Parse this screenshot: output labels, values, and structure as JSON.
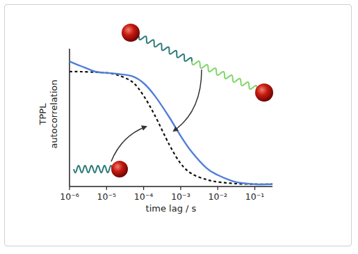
{
  "chart_data": {
    "type": "line",
    "x_label": "time lag / s",
    "y_label": "TPPL autocorrelation",
    "log": "x",
    "xlim": [
      1e-06,
      0.3
    ],
    "ylim": [
      0,
      1.2
    ],
    "tick_labels": "x",
    "xticks": [
      {
        "value": 1e-06,
        "label": "10⁻⁶"
      },
      {
        "value": 1e-05,
        "label": "10⁻⁵"
      },
      {
        "value": 0.0001,
        "label": "10⁻⁴"
      },
      {
        "value": 0.001,
        "label": "10⁻³"
      },
      {
        "value": 0.01,
        "label": "10⁻²"
      },
      {
        "value": 0.1,
        "label": "10⁻¹"
      }
    ],
    "x": [
      1e-06,
      2e-06,
      5e-06,
      1e-05,
      2e-05,
      5e-05,
      0.0001,
      0.0002,
      0.0005,
      0.001,
      0.002,
      0.005,
      0.01,
      0.03,
      0.1,
      0.3
    ],
    "series": [
      {
        "color": "#4f7fd9",
        "line_style": "solid",
        "values": [
          1.09,
          1.05,
          1.0,
          0.99,
          0.98,
          0.96,
          0.9,
          0.79,
          0.6,
          0.44,
          0.3,
          0.16,
          0.1,
          0.04,
          0.02,
          0.02
        ]
      },
      {
        "color": "#111111",
        "line_style": "dashed",
        "values": [
          1.0,
          1.0,
          0.995,
          0.99,
          0.97,
          0.91,
          0.79,
          0.62,
          0.36,
          0.2,
          0.11,
          0.06,
          0.04,
          0.025,
          0.02,
          0.02
        ]
      }
    ]
  }
}
